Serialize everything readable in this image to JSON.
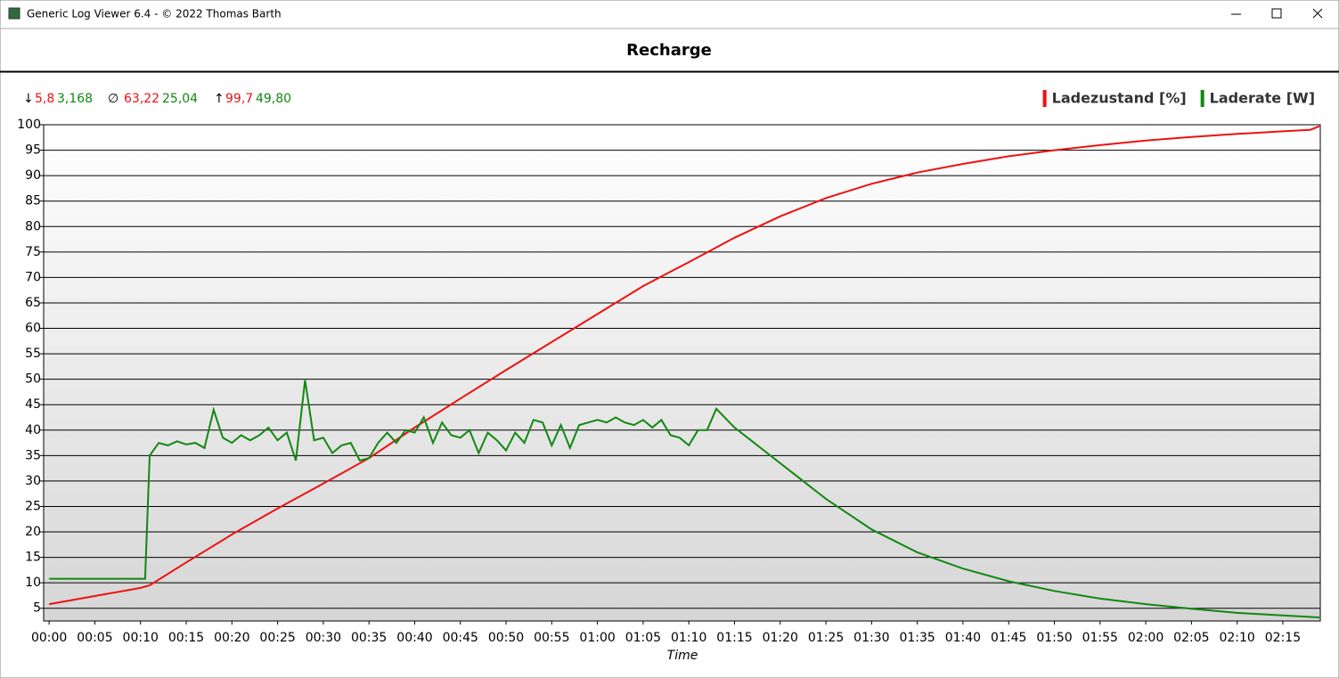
{
  "window": {
    "title": "Generic Log Viewer 6.4 - © 2022 Thomas Barth"
  },
  "stats": {
    "min": {
      "symbol": "↓",
      "values": [
        "5,8",
        "3,168"
      ]
    },
    "avg": {
      "symbol": "∅",
      "values": [
        "63,22",
        "25,04"
      ]
    },
    "max": {
      "symbol": "↑",
      "values": [
        "99,7",
        "49,80"
      ]
    }
  },
  "chart_data": {
    "type": "line",
    "title": "Recharge",
    "x_label": "Time",
    "xlim": [
      -0.6,
      139.1
    ],
    "ylim": [
      2.5,
      100
    ],
    "grid": true,
    "legend": "top-right",
    "xticks": [
      {
        "value": 0,
        "label": "00:00"
      },
      {
        "value": 5,
        "label": "00:05"
      },
      {
        "value": 10,
        "label": "00:10"
      },
      {
        "value": 15,
        "label": "00:15"
      },
      {
        "value": 20,
        "label": "00:20"
      },
      {
        "value": 25,
        "label": "00:25"
      },
      {
        "value": 30,
        "label": "00:30"
      },
      {
        "value": 35,
        "label": "00:35"
      },
      {
        "value": 40,
        "label": "00:40"
      },
      {
        "value": 45,
        "label": "00:45"
      },
      {
        "value": 50,
        "label": "00:50"
      },
      {
        "value": 55,
        "label": "00:55"
      },
      {
        "value": 60,
        "label": "01:00"
      },
      {
        "value": 65,
        "label": "01:05"
      },
      {
        "value": 70,
        "label": "01:10"
      },
      {
        "value": 75,
        "label": "01:15"
      },
      {
        "value": 80,
        "label": "01:20"
      },
      {
        "value": 85,
        "label": "01:25"
      },
      {
        "value": 90,
        "label": "01:30"
      },
      {
        "value": 95,
        "label": "01:35"
      },
      {
        "value": 100,
        "label": "01:40"
      },
      {
        "value": 105,
        "label": "01:45"
      },
      {
        "value": 110,
        "label": "01:50"
      },
      {
        "value": 115,
        "label": "01:55"
      },
      {
        "value": 120,
        "label": "02:00"
      },
      {
        "value": 125,
        "label": "02:05"
      },
      {
        "value": 130,
        "label": "02:10"
      },
      {
        "value": 135,
        "label": "02:15"
      }
    ],
    "yticks": [
      5,
      10,
      15,
      20,
      25,
      30,
      35,
      40,
      45,
      50,
      55,
      60,
      65,
      70,
      75,
      80,
      85,
      90,
      95,
      100
    ],
    "series": [
      {
        "name": "Ladezustand [%]",
        "color": "#ee1111",
        "x": [
          0,
          5,
          10,
          11,
          15,
          20,
          25,
          30,
          35,
          40,
          45,
          50,
          55,
          60,
          65,
          70,
          75,
          80,
          85,
          90,
          95,
          100,
          105,
          110,
          115,
          120,
          125,
          130,
          135,
          138,
          139
        ],
        "values": [
          5.8,
          7.4,
          9.0,
          9.5,
          14,
          19.5,
          24.6,
          29.5,
          34.5,
          40.5,
          46.2,
          51.8,
          57.3,
          62.8,
          68.3,
          73,
          77.8,
          82,
          85.6,
          88.4,
          90.6,
          92.3,
          93.8,
          95,
          96,
          96.9,
          97.6,
          98.2,
          98.7,
          99.0,
          99.7
        ]
      },
      {
        "name": "Laderate [W]",
        "color": "#118811",
        "x": [
          0,
          10.5,
          11,
          12,
          13,
          14,
          15,
          16,
          17,
          18,
          19,
          20,
          21,
          22,
          23,
          24,
          25,
          26,
          27,
          28,
          29,
          30,
          31,
          32,
          33,
          34,
          35,
          36,
          37,
          38,
          39,
          40,
          41,
          42,
          43,
          44,
          45,
          46,
          47,
          48,
          49,
          50,
          51,
          52,
          53,
          54,
          55,
          56,
          57,
          58,
          59,
          60,
          61,
          62,
          63,
          64,
          65,
          66,
          67,
          68,
          69,
          70,
          71,
          72,
          73,
          75,
          80,
          85,
          90,
          95,
          100,
          105,
          110,
          115,
          120,
          125,
          130,
          135,
          139
        ],
        "values": [
          10.8,
          10.8,
          35,
          37.5,
          37,
          37.8,
          37.2,
          37.5,
          36.5,
          44,
          38.5,
          37.5,
          39,
          38,
          39,
          40.5,
          38,
          39.5,
          34,
          49.8,
          38,
          38.5,
          35.5,
          37,
          37.5,
          34,
          34.5,
          37.5,
          39.5,
          37.5,
          40,
          39.5,
          42.5,
          37.5,
          41.5,
          39,
          38.5,
          40,
          35.5,
          39.5,
          38,
          36,
          39.5,
          37.5,
          42,
          41.5,
          37,
          41,
          36.5,
          41,
          41.5,
          42,
          41.5,
          42.5,
          41.5,
          41,
          42,
          40.5,
          42,
          39,
          38.5,
          37,
          40,
          40,
          44.2,
          40.5,
          33.5,
          26.5,
          20.5,
          16,
          12.8,
          10.3,
          8.4,
          6.9,
          5.8,
          4.9,
          4.1,
          3.6,
          3.2
        ]
      }
    ]
  }
}
